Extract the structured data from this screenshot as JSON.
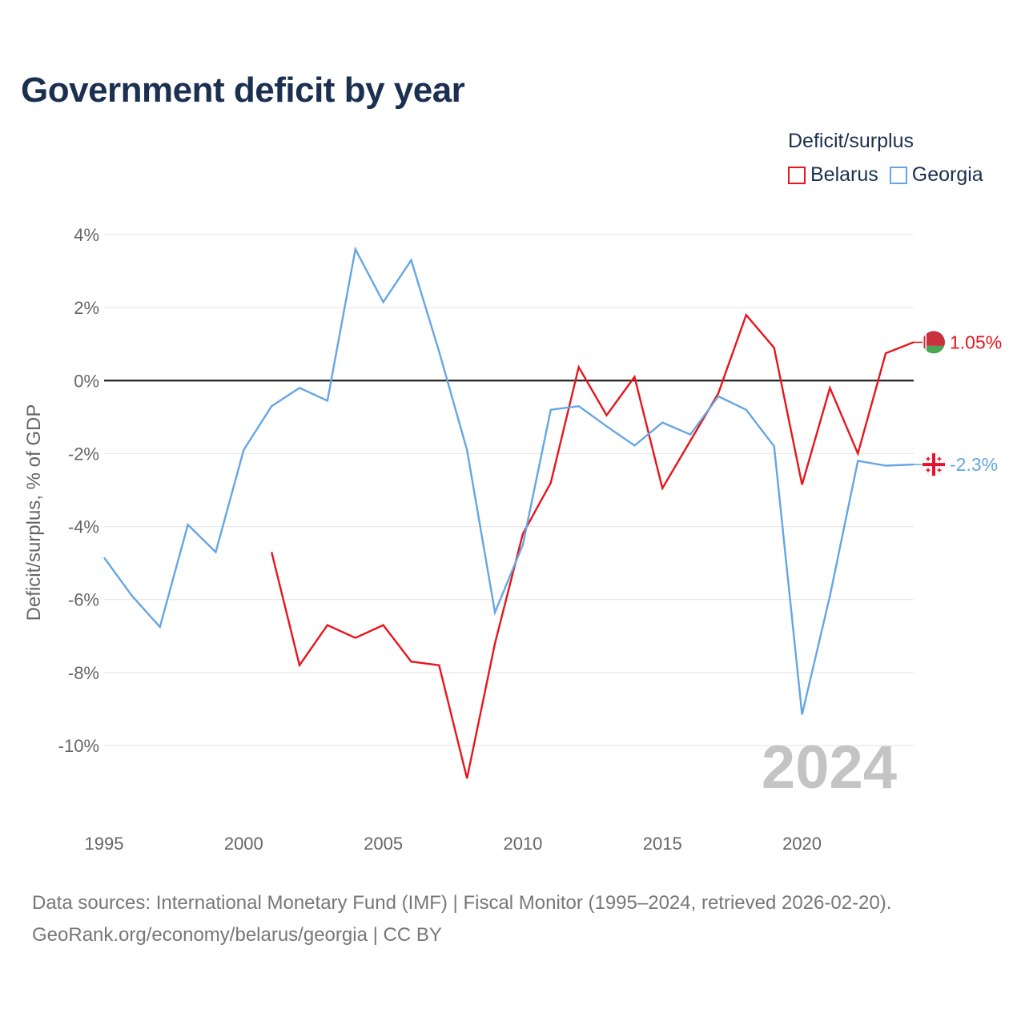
{
  "title": "Government deficit by year",
  "legend": {
    "title": "Deficit/surplus",
    "items": [
      {
        "label": "Belarus",
        "color": "#e8141b"
      },
      {
        "label": "Georgia",
        "color": "#64a6e3"
      }
    ]
  },
  "source": {
    "line1": "Data sources: International Monetary Fund (IMF) | Fiscal Monitor (1995–2024, retrieved 2026-02-20).",
    "line2": "GeoRank.org/economy/belarus/georgia | CC BY"
  },
  "chart_data": {
    "type": "line",
    "title": "Government deficit by year",
    "xlabel": "",
    "ylabel": "Deficit/surplus, % of GDP",
    "xlim": [
      1995,
      2024
    ],
    "ylim": [
      -12,
      4
    ],
    "xticks": [
      1995,
      2000,
      2005,
      2010,
      2015,
      2020
    ],
    "yticks": [
      4,
      2,
      0,
      -2,
      -4,
      -6,
      -8,
      -10
    ],
    "ytick_labels": [
      "4%",
      "2%",
      "0%",
      "-2%",
      "-4%",
      "-6%",
      "-8%",
      "-10%"
    ],
    "grid": true,
    "legend_position": "top-right",
    "watermark_year": "2024",
    "series": [
      {
        "name": "Belarus",
        "color": "#e8141b",
        "end_label": "1.05%",
        "flag_icon": "belarus-flag-icon",
        "points": [
          [
            2001,
            -4.7
          ],
          [
            2002,
            -7.8
          ],
          [
            2003,
            -6.7
          ],
          [
            2004,
            -7.05
          ],
          [
            2005,
            -6.7
          ],
          [
            2006,
            -7.7
          ],
          [
            2007,
            -7.8
          ],
          [
            2008,
            -10.9
          ],
          [
            2009,
            -7.2
          ],
          [
            2010,
            -4.2
          ],
          [
            2011,
            -2.8
          ],
          [
            2012,
            0.37
          ],
          [
            2013,
            -0.95
          ],
          [
            2014,
            0.1
          ],
          [
            2015,
            -2.95
          ],
          [
            2016,
            -1.65
          ],
          [
            2017,
            -0.35
          ],
          [
            2018,
            1.8
          ],
          [
            2019,
            0.9
          ],
          [
            2020,
            -2.85
          ],
          [
            2021,
            -0.2
          ],
          [
            2022,
            -2
          ],
          [
            2023,
            0.75
          ],
          [
            2024,
            1.05
          ]
        ]
      },
      {
        "name": "Georgia",
        "color": "#64a6e3",
        "end_label": "-2.3%",
        "flag_icon": "georgia-flag-icon",
        "points": [
          [
            1995,
            -4.85
          ],
          [
            1996,
            -5.9
          ],
          [
            1997,
            -6.75
          ],
          [
            1998,
            -3.95
          ],
          [
            1999,
            -4.7
          ],
          [
            2000,
            -1.9
          ],
          [
            2001,
            -0.7
          ],
          [
            2002,
            -0.2
          ],
          [
            2003,
            -0.55
          ],
          [
            2004,
            3.6
          ],
          [
            2005,
            2.15
          ],
          [
            2006,
            3.3
          ],
          [
            2007,
            0.8
          ],
          [
            2008,
            -1.9
          ],
          [
            2009,
            -6.35
          ],
          [
            2010,
            -4.5
          ],
          [
            2011,
            -0.8
          ],
          [
            2012,
            -0.7
          ],
          [
            2013,
            -1.25
          ],
          [
            2014,
            -1.78
          ],
          [
            2015,
            -1.15
          ],
          [
            2016,
            -1.48
          ],
          [
            2017,
            -0.43
          ],
          [
            2018,
            -0.8
          ],
          [
            2019,
            -1.8
          ],
          [
            2020,
            -9.15
          ],
          [
            2021,
            -5.9
          ],
          [
            2022,
            -2.2
          ],
          [
            2023,
            -2.33
          ],
          [
            2024,
            -2.3
          ]
        ]
      }
    ]
  }
}
